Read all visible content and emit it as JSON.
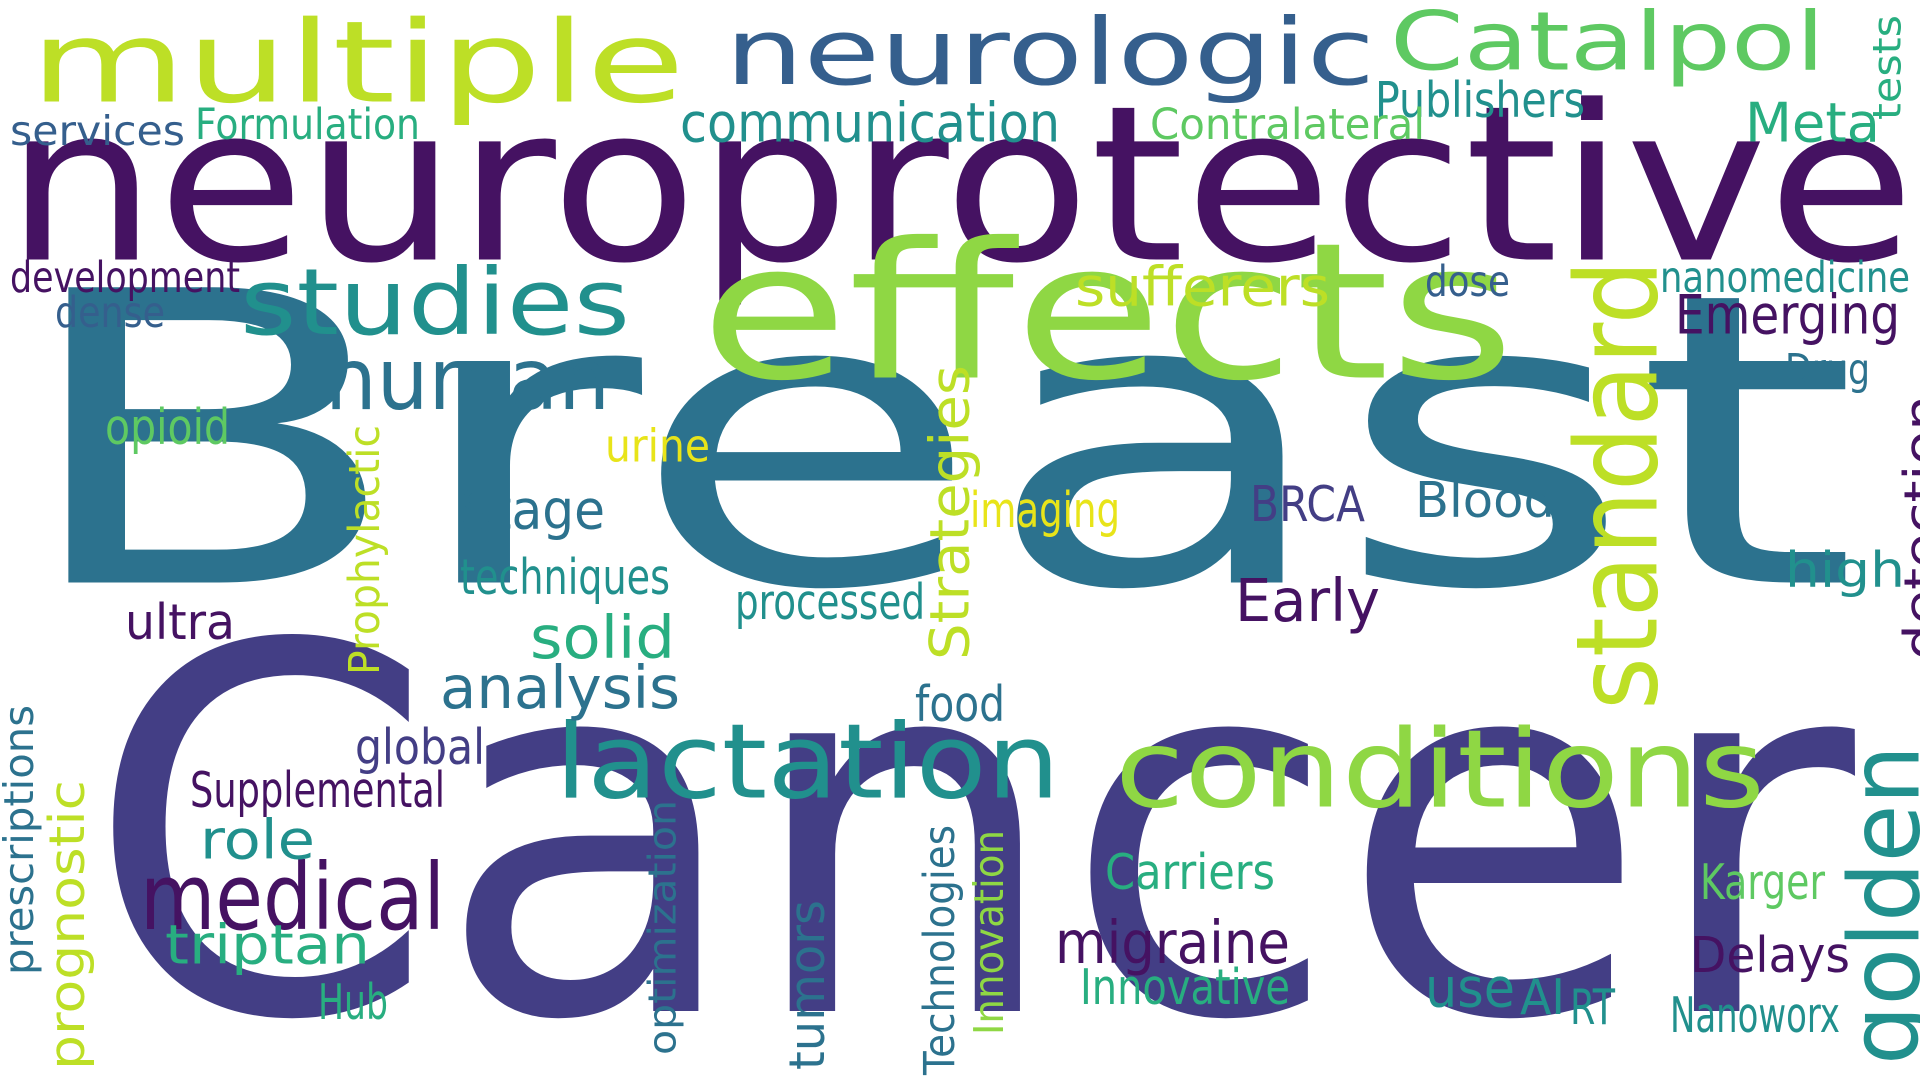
{
  "palette": {
    "background": "#ffffff",
    "deep_purple": "#451262",
    "indigo": "#433E85",
    "slate_blue": "#355F8D",
    "teal_blue": "#2C728E",
    "teal": "#21908D",
    "sea_green": "#28AE80",
    "green": "#5EC962",
    "lime": "#8FD744",
    "yellow_green": "#BDDF26",
    "yellow": "#E8E419"
  },
  "words": [
    {
      "text": "Breast",
      "color": "#2C728E"
    },
    {
      "text": "Cancer",
      "color": "#433E85"
    },
    {
      "text": "neuroprotective",
      "color": "#451262"
    },
    {
      "text": "effects",
      "color": "#8FD744"
    },
    {
      "text": "multiple",
      "color": "#BDDF26"
    },
    {
      "text": "neurologic",
      "color": "#355F8D"
    },
    {
      "text": "Catalpol",
      "color": "#5EC962"
    },
    {
      "text": "conditions",
      "color": "#8FD744"
    },
    {
      "text": "lactation",
      "color": "#21908D"
    },
    {
      "text": "standard",
      "color": "#BDDF26"
    },
    {
      "text": "golden",
      "color": "#21908D"
    },
    {
      "text": "studies",
      "color": "#21908D"
    },
    {
      "text": "human",
      "color": "#2C728E"
    },
    {
      "text": "medical",
      "color": "#451262"
    },
    {
      "text": "communication",
      "color": "#21908D"
    },
    {
      "text": "Meta",
      "color": "#28AE80"
    },
    {
      "text": "Publishers",
      "color": "#21908D"
    },
    {
      "text": "Contralateral",
      "color": "#5EC962"
    },
    {
      "text": "tests",
      "color": "#28AE80"
    },
    {
      "text": "services",
      "color": "#355F8D"
    },
    {
      "text": "Formulation",
      "color": "#28AE80"
    },
    {
      "text": "development",
      "color": "#451262"
    },
    {
      "text": "dense",
      "color": "#355F8D"
    },
    {
      "text": "sufferers",
      "color": "#BDDF26"
    },
    {
      "text": "dose",
      "color": "#355F8D"
    },
    {
      "text": "nanomedicine",
      "color": "#21908D"
    },
    {
      "text": "Emerging",
      "color": "#451262"
    },
    {
      "text": "Drug",
      "color": "#2C728E"
    },
    {
      "text": "detection",
      "color": "#451262"
    },
    {
      "text": "opioid",
      "color": "#5EC962"
    },
    {
      "text": "urine",
      "color": "#E8E419"
    },
    {
      "text": "Prophylactic",
      "color": "#BDDF26"
    },
    {
      "text": "Strategies",
      "color": "#BDDF26"
    },
    {
      "text": "imaging",
      "color": "#E8E419"
    },
    {
      "text": "BRCA",
      "color": "#433E85"
    },
    {
      "text": "Blood",
      "color": "#2C728E"
    },
    {
      "text": "high",
      "color": "#21908D"
    },
    {
      "text": "Stage",
      "color": "#2C728E"
    },
    {
      "text": "techniques",
      "color": "#21908D"
    },
    {
      "text": "processed",
      "color": "#21908D"
    },
    {
      "text": "Early",
      "color": "#451262"
    },
    {
      "text": "ultra",
      "color": "#451262"
    },
    {
      "text": "solid",
      "color": "#28AE80"
    },
    {
      "text": "analysis",
      "color": "#2C728E"
    },
    {
      "text": "food",
      "color": "#2C728E"
    },
    {
      "text": "global",
      "color": "#433E85"
    },
    {
      "text": "prescriptions",
      "color": "#2C728E"
    },
    {
      "text": "Supplemental",
      "color": "#451262"
    },
    {
      "text": "role",
      "color": "#21908D"
    },
    {
      "text": "prognostic",
      "color": "#BDDF26"
    },
    {
      "text": "triptan",
      "color": "#28AE80"
    },
    {
      "text": "optimization",
      "color": "#2C728E"
    },
    {
      "text": "Technologies",
      "color": "#2C728E"
    },
    {
      "text": "Innovation",
      "color": "#8FD744"
    },
    {
      "text": "tumors",
      "color": "#2C728E"
    },
    {
      "text": "migraine",
      "color": "#451262"
    },
    {
      "text": "Carriers",
      "color": "#28AE80"
    },
    {
      "text": "Karger",
      "color": "#5EC962"
    },
    {
      "text": "Delays",
      "color": "#451262"
    },
    {
      "text": "Innovative",
      "color": "#28AE80"
    },
    {
      "text": "use",
      "color": "#21908D"
    },
    {
      "text": "AI",
      "color": "#21908D"
    },
    {
      "text": "RT",
      "color": "#21908D"
    },
    {
      "text": "Nanoworx",
      "color": "#21908D"
    },
    {
      "text": "Hub",
      "color": "#28AE80"
    }
  ]
}
